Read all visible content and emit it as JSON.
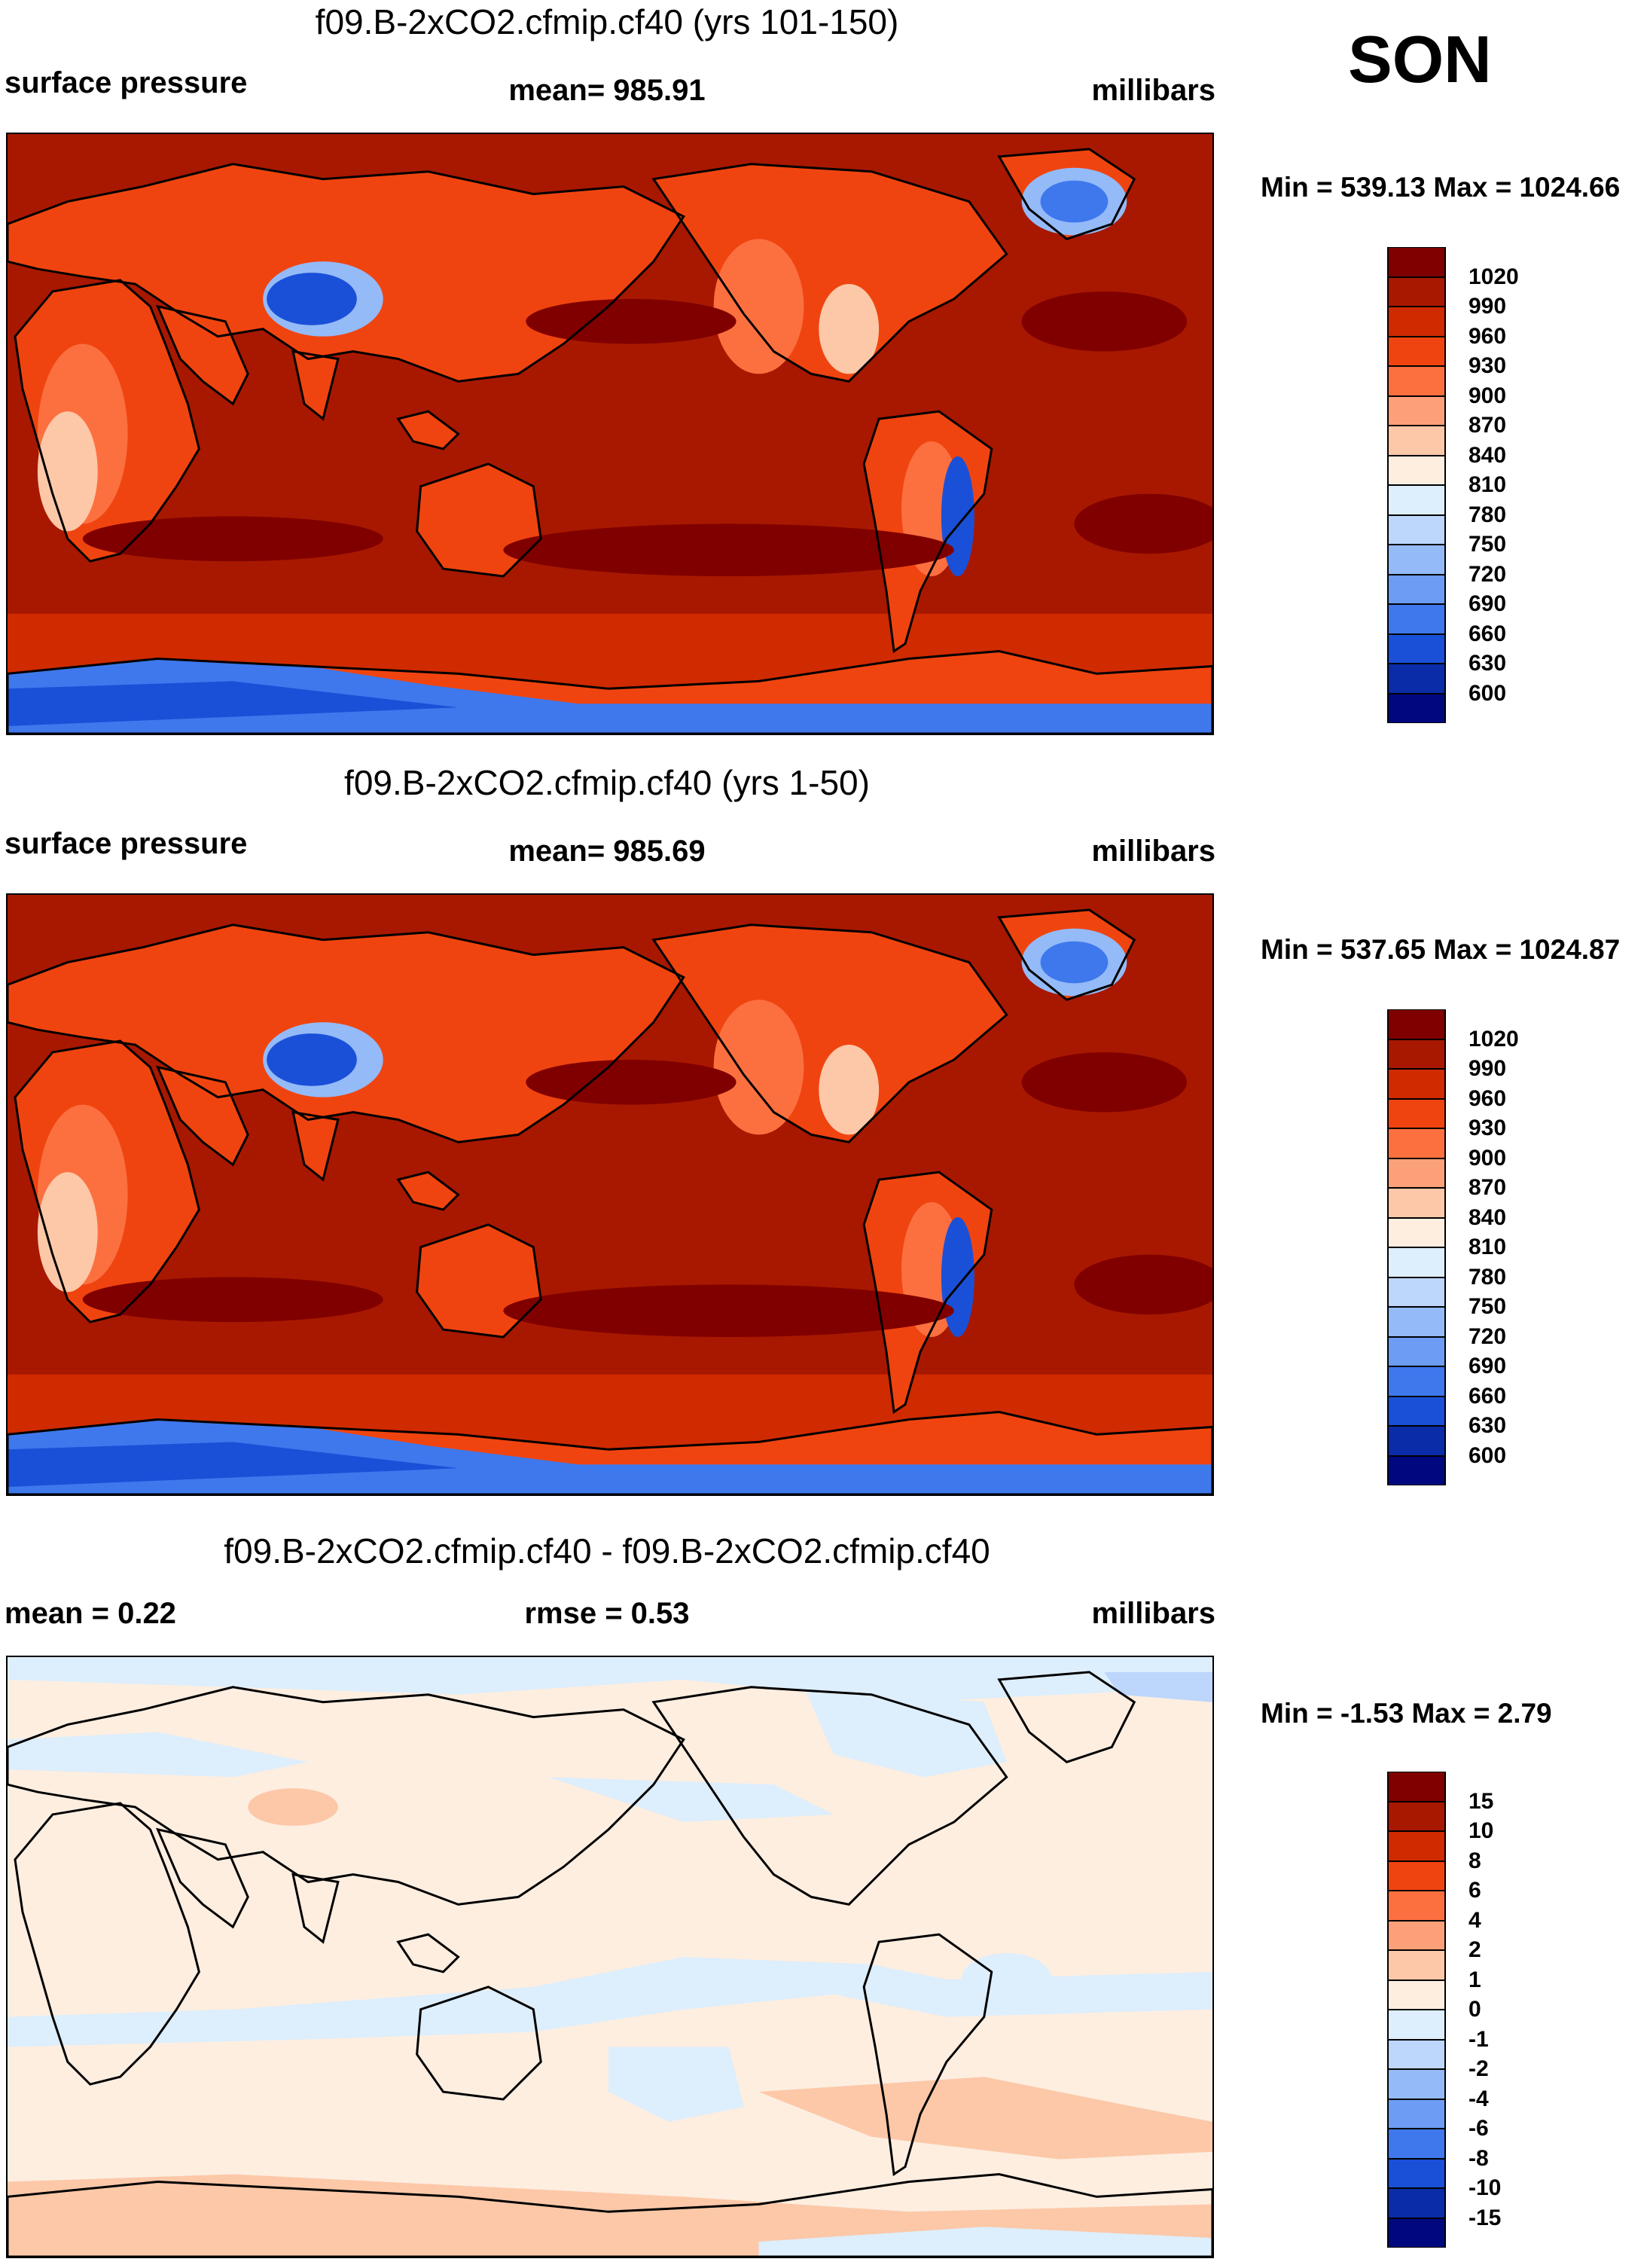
{
  "season": "SON",
  "colors": {
    "abs_scale": [
      "#800000",
      "#a81800",
      "#d02a00",
      "#f04410",
      "#fc7040",
      "#fca07a",
      "#fcc8a8",
      "#fdeee0",
      "#ddeefc",
      "#bcd6fc",
      "#94baf8",
      "#6c9cf4",
      "#3e78ec",
      "#1a50d8",
      "#0a2ca8",
      "#000880"
    ],
    "diff_scale": [
      "#800000",
      "#a81800",
      "#d02a00",
      "#f04410",
      "#fc7040",
      "#fca07a",
      "#fcc8a8",
      "#fdeee0",
      "#ddeefc",
      "#bcd6fc",
      "#94baf8",
      "#6c9cf4",
      "#3e78ec",
      "#1a50d8",
      "#0a2ca8",
      "#000880"
    ]
  },
  "panels": [
    {
      "title": "f09.B-2xCO2.cfmip.cf40 (yrs 101-150)",
      "left_label": "surface pressure",
      "center_label": "mean= 985.91",
      "right_label": "millibars",
      "minmax": "Min = 539.13 Max = 1024.66",
      "colorbar_ticks": [
        "1020",
        "990",
        "960",
        "930",
        "900",
        "870",
        "840",
        "810",
        "780",
        "750",
        "720",
        "690",
        "660",
        "630",
        "600"
      ]
    },
    {
      "title": "f09.B-2xCO2.cfmip.cf40 (yrs 1-50)",
      "left_label": "surface pressure",
      "center_label": "mean= 985.69",
      "right_label": "millibars",
      "minmax": "Min = 537.65 Max = 1024.87",
      "colorbar_ticks": [
        "1020",
        "990",
        "960",
        "930",
        "900",
        "870",
        "840",
        "810",
        "780",
        "750",
        "720",
        "690",
        "660",
        "630",
        "600"
      ]
    },
    {
      "title": "f09.B-2xCO2.cfmip.cf40 - f09.B-2xCO2.cfmip.cf40",
      "left_label": "mean =   0.22",
      "center_label": "rmse =   0.53",
      "right_label": "millibars",
      "minmax": "Min =  -1.53 Max =   2.79",
      "colorbar_ticks": [
        "15",
        "10",
        "8",
        "6",
        "4",
        "2",
        "1",
        "0",
        "-1",
        "-2",
        "-4",
        "-6",
        "-8",
        "-10",
        "-15"
      ]
    }
  ]
}
